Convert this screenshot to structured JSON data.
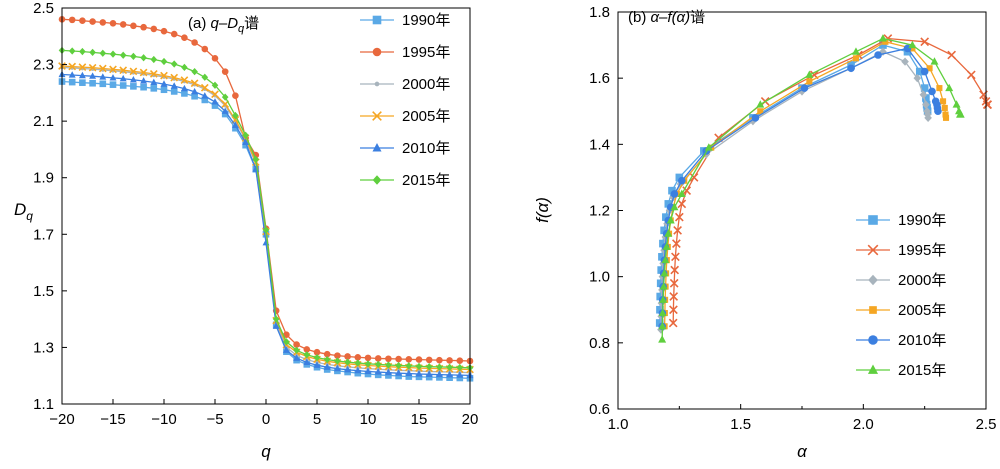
{
  "figure": {
    "colors": {
      "1990": "#5aa9e6",
      "1995": "#e8683d",
      "2000": "#a8b4bd",
      "2005": "#f5a623",
      "2010": "#3b7fe0",
      "2015": "#5fcf3e"
    }
  },
  "chart_data": [
    {
      "type": "line",
      "title": "(a) q–Dq谱",
      "title_parts": {
        "prefix": "(a) ",
        "q": "q",
        "dash": "–",
        "D": "D",
        "sub": "q",
        "suffix": "谱"
      },
      "xlabel": "q",
      "ylabel": "Dq",
      "ylabel_parts": {
        "main": "D",
        "sub": "q"
      },
      "xlim": [
        -20,
        20
      ],
      "ylim": [
        1.1,
        2.5
      ],
      "xticks": [
        -20,
        -15,
        -10,
        -5,
        0,
        5,
        10,
        15,
        20
      ],
      "xtick_labels": [
        "−20",
        "−15",
        "−10",
        "−5",
        "0",
        "5",
        "10",
        "15",
        "20"
      ],
      "yticks": [
        1.1,
        1.3,
        1.5,
        1.7,
        1.9,
        2.1,
        2.3,
        2.5
      ],
      "ytick_labels": [
        "1.1",
        "1.3",
        "1.5",
        "1.7",
        "1.9",
        "2.1",
        "2.3",
        "2.5"
      ],
      "grid": false,
      "legend_position": "top-right",
      "series": [
        {
          "name": "1990年",
          "key": "1990",
          "marker": "square",
          "color": "#5aa9e6",
          "x": [
            -20,
            -19,
            -18,
            -17,
            -16,
            -15,
            -14,
            -13,
            -12,
            -11,
            -10,
            -9,
            -8,
            -7,
            -6,
            -5,
            -4,
            -3,
            -2,
            -1,
            0,
            1,
            2,
            3,
            4,
            5,
            6,
            7,
            8,
            9,
            10,
            11,
            12,
            13,
            14,
            15,
            16,
            17,
            18,
            19,
            20
          ],
          "y": [
            2.24,
            2.238,
            2.236,
            2.234,
            2.232,
            2.229,
            2.226,
            2.223,
            2.22,
            2.216,
            2.211,
            2.205,
            2.198,
            2.188,
            2.175,
            2.155,
            2.125,
            2.075,
            2.015,
            1.93,
            1.7,
            1.38,
            1.285,
            1.255,
            1.24,
            1.23,
            1.222,
            1.217,
            1.213,
            1.209,
            1.206,
            1.203,
            1.201,
            1.199,
            1.197,
            1.196,
            1.195,
            1.194,
            1.193,
            1.192,
            1.191
          ]
        },
        {
          "name": "1995年",
          "key": "1995",
          "marker": "circle",
          "color": "#e8683d",
          "x": [
            -20,
            -19,
            -18,
            -17,
            -16,
            -15,
            -14,
            -13,
            -12,
            -11,
            -10,
            -9,
            -8,
            -7,
            -6,
            -5,
            -4,
            -3,
            -2,
            -1,
            0,
            1,
            2,
            3,
            4,
            5,
            6,
            7,
            8,
            9,
            10,
            11,
            12,
            13,
            14,
            15,
            16,
            17,
            18,
            19,
            20
          ],
          "y": [
            2.46,
            2.458,
            2.455,
            2.452,
            2.449,
            2.446,
            2.442,
            2.437,
            2.432,
            2.426,
            2.418,
            2.408,
            2.395,
            2.378,
            2.355,
            2.322,
            2.275,
            2.19,
            2.04,
            1.98,
            1.72,
            1.43,
            1.345,
            1.31,
            1.293,
            1.283,
            1.276,
            1.271,
            1.268,
            1.265,
            1.263,
            1.261,
            1.26,
            1.259,
            1.258,
            1.257,
            1.256,
            1.255,
            1.254,
            1.253,
            1.252
          ]
        },
        {
          "name": "2000年",
          "key": "2000",
          "marker": "dot",
          "color": "#a8b4bd",
          "x": [
            -20,
            -19,
            -18,
            -17,
            -16,
            -15,
            -14,
            -13,
            -12,
            -11,
            -10,
            -9,
            -8,
            -7,
            -6,
            -5,
            -4,
            -3,
            -2,
            -1,
            0,
            1,
            2,
            3,
            4,
            5,
            6,
            7,
            8,
            9,
            10,
            11,
            12,
            13,
            14,
            15,
            16,
            17,
            18,
            19,
            20
          ],
          "y": [
            2.29,
            2.288,
            2.286,
            2.284,
            2.281,
            2.278,
            2.275,
            2.271,
            2.267,
            2.262,
            2.256,
            2.249,
            2.24,
            2.229,
            2.213,
            2.19,
            2.155,
            2.1,
            2.035,
            1.95,
            1.705,
            1.385,
            1.3,
            1.272,
            1.257,
            1.247,
            1.24,
            1.235,
            1.231,
            1.228,
            1.225,
            1.223,
            1.221,
            1.219,
            1.218,
            1.216,
            1.215,
            1.214,
            1.213,
            1.212,
            1.211
          ]
        },
        {
          "name": "2005年",
          "key": "2005",
          "marker": "x",
          "color": "#f5a623",
          "x": [
            -20,
            -19,
            -18,
            -17,
            -16,
            -15,
            -14,
            -13,
            -12,
            -11,
            -10,
            -9,
            -8,
            -7,
            -6,
            -5,
            -4,
            -3,
            -2,
            -1,
            0,
            1,
            2,
            3,
            4,
            5,
            6,
            7,
            8,
            9,
            10,
            11,
            12,
            13,
            14,
            15,
            16,
            17,
            18,
            19,
            20
          ],
          "y": [
            2.295,
            2.293,
            2.291,
            2.289,
            2.286,
            2.283,
            2.28,
            2.276,
            2.272,
            2.267,
            2.261,
            2.254,
            2.245,
            2.234,
            2.218,
            2.195,
            2.16,
            2.105,
            2.04,
            1.955,
            1.71,
            1.395,
            1.31,
            1.283,
            1.268,
            1.258,
            1.251,
            1.246,
            1.242,
            1.239,
            1.236,
            1.234,
            1.232,
            1.23,
            1.229,
            1.227,
            1.226,
            1.225,
            1.224,
            1.223,
            1.222
          ]
        },
        {
          "name": "2010年",
          "key": "2010",
          "marker": "triangle",
          "color": "#3b7fe0",
          "x": [
            -20,
            -19,
            -18,
            -17,
            -16,
            -15,
            -14,
            -13,
            -12,
            -11,
            -10,
            -9,
            -8,
            -7,
            -6,
            -5,
            -4,
            -3,
            -2,
            -1,
            0,
            1,
            2,
            3,
            4,
            5,
            6,
            7,
            8,
            9,
            10,
            11,
            12,
            13,
            14,
            15,
            16,
            17,
            18,
            19,
            20
          ],
          "y": [
            2.265,
            2.263,
            2.261,
            2.259,
            2.256,
            2.253,
            2.25,
            2.246,
            2.242,
            2.237,
            2.231,
            2.224,
            2.215,
            2.204,
            2.189,
            2.168,
            2.135,
            2.085,
            2.025,
            1.93,
            1.67,
            1.375,
            1.29,
            1.262,
            1.247,
            1.237,
            1.23,
            1.225,
            1.221,
            1.218,
            1.215,
            1.213,
            1.211,
            1.209,
            1.208,
            1.206,
            1.205,
            1.204,
            1.203,
            1.202,
            1.201
          ]
        },
        {
          "name": "2015年",
          "key": "2015",
          "marker": "diamond",
          "color": "#5fcf3e",
          "x": [
            -20,
            -19,
            -18,
            -17,
            -16,
            -15,
            -14,
            -13,
            -12,
            -11,
            -10,
            -9,
            -8,
            -7,
            -6,
            -5,
            -4,
            -3,
            -2,
            -1,
            0,
            1,
            2,
            3,
            4,
            5,
            6,
            7,
            8,
            9,
            10,
            11,
            12,
            13,
            14,
            15,
            16,
            17,
            18,
            19,
            20
          ],
          "y": [
            2.35,
            2.348,
            2.346,
            2.343,
            2.34,
            2.337,
            2.333,
            2.329,
            2.324,
            2.318,
            2.311,
            2.302,
            2.29,
            2.275,
            2.255,
            2.227,
            2.185,
            2.12,
            2.05,
            1.965,
            1.715,
            1.4,
            1.32,
            1.29,
            1.274,
            1.264,
            1.257,
            1.252,
            1.248,
            1.245,
            1.242,
            1.24,
            1.238,
            1.236,
            1.235,
            1.233,
            1.232,
            1.231,
            1.23,
            1.229,
            1.228
          ]
        }
      ]
    },
    {
      "type": "line",
      "title": "(b) α–f(α)谱",
      "title_parts": {
        "prefix": "(b) ",
        "italic": "α–f(α)",
        "suffix": "谱"
      },
      "xlabel": "α",
      "ylabel": "f(α)",
      "xlim": [
        1.0,
        2.5
      ],
      "ylim": [
        0.6,
        1.8
      ],
      "xticks": [
        1.0,
        1.5,
        2.0,
        2.5
      ],
      "xtick_labels": [
        "1.0",
        "1.5",
        "2.0",
        "2.5"
      ],
      "yticks": [
        0.6,
        0.8,
        1.0,
        1.2,
        1.4,
        1.6,
        1.8
      ],
      "ytick_labels": [
        "0.6",
        "0.8",
        "1.0",
        "1.2",
        "1.4",
        "1.6",
        "1.8"
      ],
      "grid": false,
      "legend_position": "bottom-right",
      "series": [
        {
          "name": "1990年",
          "key": "1990",
          "marker": "square",
          "color": "#5aa9e6",
          "x": [
            1.17,
            1.171,
            1.172,
            1.174,
            1.176,
            1.179,
            1.183,
            1.188,
            1.195,
            1.205,
            1.22,
            1.25,
            1.35,
            1.55,
            1.75,
            1.95,
            2.08,
            2.18,
            2.23,
            2.25,
            2.255,
            2.258,
            2.26,
            2.262
          ],
          "y": [
            0.86,
            0.9,
            0.94,
            0.98,
            1.02,
            1.06,
            1.1,
            1.14,
            1.18,
            1.22,
            1.26,
            1.3,
            1.38,
            1.48,
            1.57,
            1.64,
            1.7,
            1.68,
            1.62,
            1.57,
            1.54,
            1.52,
            1.51,
            1.5
          ]
        },
        {
          "name": " 1995年",
          "key": "1995",
          "marker": "x",
          "color": "#e8683d",
          "x": [
            1.225,
            1.226,
            1.227,
            1.229,
            1.231,
            1.234,
            1.238,
            1.243,
            1.25,
            1.26,
            1.28,
            1.31,
            1.41,
            1.6,
            1.8,
            1.98,
            2.1,
            2.25,
            2.36,
            2.44,
            2.49,
            2.5,
            2.505,
            2.507
          ],
          "y": [
            0.86,
            0.9,
            0.94,
            0.98,
            1.02,
            1.06,
            1.1,
            1.14,
            1.18,
            1.22,
            1.26,
            1.3,
            1.42,
            1.53,
            1.61,
            1.67,
            1.72,
            1.71,
            1.67,
            1.61,
            1.55,
            1.53,
            1.52,
            1.52
          ]
        },
        {
          "name": "2000年",
          "key": "2000",
          "marker": "diamond",
          "color": "#a8b4bd",
          "x": [
            1.175,
            1.176,
            1.177,
            1.179,
            1.181,
            1.184,
            1.188,
            1.193,
            1.2,
            1.21,
            1.225,
            1.255,
            1.36,
            1.55,
            1.75,
            1.95,
            2.08,
            2.17,
            2.22,
            2.245,
            2.255,
            2.26,
            2.262,
            2.264
          ],
          "y": [
            0.84,
            0.88,
            0.92,
            0.96,
            1.0,
            1.04,
            1.08,
            1.12,
            1.16,
            1.2,
            1.24,
            1.28,
            1.37,
            1.47,
            1.56,
            1.63,
            1.68,
            1.65,
            1.6,
            1.55,
            1.52,
            1.5,
            1.49,
            1.48
          ]
        },
        {
          "name": "2005年",
          "key": "2005",
          "marker": "square-small",
          "color": "#f5a623",
          "x": [
            1.19,
            1.191,
            1.192,
            1.194,
            1.196,
            1.199,
            1.203,
            1.208,
            1.215,
            1.225,
            1.24,
            1.27,
            1.38,
            1.58,
            1.78,
            1.97,
            2.09,
            2.2,
            2.27,
            2.31,
            2.325,
            2.332,
            2.335,
            2.337
          ],
          "y": [
            0.85,
            0.89,
            0.93,
            0.97,
            1.01,
            1.05,
            1.09,
            1.13,
            1.17,
            1.21,
            1.25,
            1.29,
            1.39,
            1.5,
            1.59,
            1.66,
            1.71,
            1.69,
            1.63,
            1.57,
            1.53,
            1.51,
            1.49,
            1.48
          ]
        },
        {
          "name": "2010年",
          "key": "2010",
          "marker": "circle",
          "color": "#3b7fe0",
          "x": [
            1.18,
            1.181,
            1.182,
            1.184,
            1.186,
            1.189,
            1.193,
            1.198,
            1.205,
            1.215,
            1.23,
            1.26,
            1.36,
            1.56,
            1.76,
            1.95,
            2.06,
            2.18,
            2.25,
            2.28,
            2.295,
            2.3,
            2.302,
            2.304
          ],
          "y": [
            0.85,
            0.89,
            0.93,
            0.97,
            1.01,
            1.05,
            1.09,
            1.13,
            1.17,
            1.21,
            1.25,
            1.29,
            1.38,
            1.48,
            1.57,
            1.63,
            1.67,
            1.69,
            1.62,
            1.56,
            1.53,
            1.52,
            1.51,
            1.5
          ]
        },
        {
          "name": "2015年",
          "key": "2015",
          "marker": "triangle",
          "color": "#5fcf3e",
          "x": [
            1.18,
            1.181,
            1.182,
            1.184,
            1.186,
            1.189,
            1.193,
            1.198,
            1.205,
            1.215,
            1.23,
            1.26,
            1.37,
            1.58,
            1.78,
            1.97,
            2.08,
            2.2,
            2.29,
            2.35,
            2.38,
            2.39,
            2.394,
            2.397
          ],
          "y": [
            0.81,
            0.85,
            0.89,
            0.93,
            0.97,
            1.01,
            1.05,
            1.09,
            1.13,
            1.17,
            1.21,
            1.25,
            1.39,
            1.52,
            1.61,
            1.68,
            1.72,
            1.7,
            1.65,
            1.57,
            1.52,
            1.5,
            1.49,
            1.49
          ]
        }
      ]
    }
  ]
}
